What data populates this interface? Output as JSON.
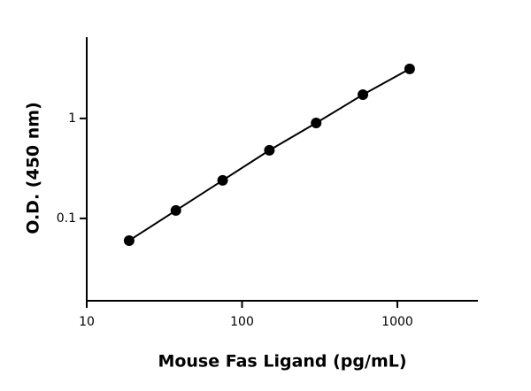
{
  "chart_data": {
    "type": "scatter",
    "x_label": "Mouse Fas Ligand (pg/mL)",
    "y_label": "O.D. (450 nm)",
    "x": [
      18.75,
      37.5,
      75,
      150,
      300,
      600,
      1200
    ],
    "series": [
      {
        "values": [
          0.06,
          0.12,
          0.24,
          0.48,
          0.9,
          1.73,
          3.13
        ],
        "color": "#000000"
      }
    ],
    "x_log": true,
    "y_log": true,
    "line": true,
    "xlim": [
      10,
      3300
    ],
    "ylim": [
      0.015,
      6.5
    ],
    "xticks": [
      10,
      100,
      1000
    ],
    "yticks": [
      0.1,
      1
    ]
  }
}
